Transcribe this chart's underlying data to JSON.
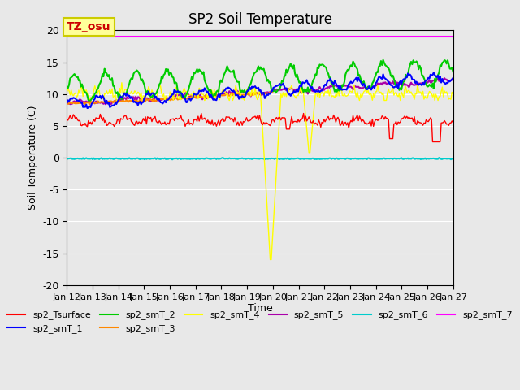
{
  "title": "SP2 Soil Temperature",
  "xlabel": "Time",
  "ylabel": "Soil Temperature (C)",
  "ylim": [
    -20,
    20
  ],
  "xlim": [
    0,
    15
  ],
  "yticks": [
    -20,
    -15,
    -10,
    -5,
    0,
    5,
    10,
    15,
    20
  ],
  "xtick_labels": [
    "Jan 12",
    "Jan 13",
    "Jan 14",
    "Jan 15",
    "Jan 16",
    "Jan 17",
    "Jan 18",
    "Jan 19",
    "Jan 20",
    "Jan 21",
    "Jan 22",
    "Jan 23",
    "Jan 24",
    "Jan 25",
    "Jan 26",
    "Jan 27"
  ],
  "background_color": "#e8e8e8",
  "plot_bg_color": "#e8e8e8",
  "colors": {
    "sp2_Tsurface": "#ff0000",
    "sp2_smT_1": "#0000ff",
    "sp2_smT_2": "#00cc00",
    "sp2_smT_3": "#ff8800",
    "sp2_smT_4": "#ffff00",
    "sp2_smT_5": "#aa00aa",
    "sp2_smT_6": "#00cccc",
    "sp2_smT_7": "#ff00ff"
  },
  "annotation_text": "TZ_osu",
  "annotation_color": "#cc0000",
  "annotation_bg": "#ffff99",
  "annotation_border": "#cccc00"
}
